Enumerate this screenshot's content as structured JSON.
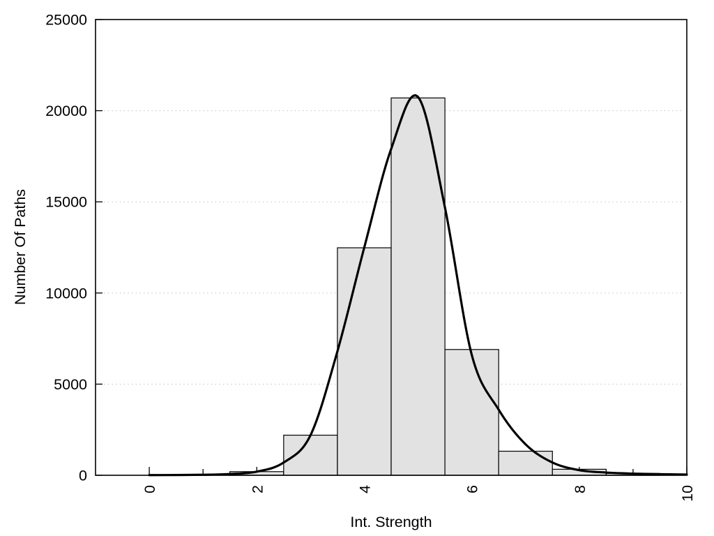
{
  "chart_data": {
    "type": "bar",
    "subtype": "histogram_with_density_curve",
    "title": "",
    "xlabel": "Int. Strength",
    "ylabel": "Number Of Paths",
    "xlim": [
      -1,
      10
    ],
    "ylim": [
      0,
      25000
    ],
    "x_major_ticks": [
      0,
      2,
      4,
      6,
      8,
      10
    ],
    "x_tick_labels": [
      "0",
      "2",
      "4",
      "6",
      "8",
      "10"
    ],
    "x_minor_ticks": [
      1,
      3,
      5,
      7,
      9
    ],
    "x_tick_labels_rotated": true,
    "y_ticks": [
      0,
      5000,
      10000,
      15000,
      20000,
      25000
    ],
    "y_tick_labels": [
      "0",
      "5000",
      "10000",
      "15000",
      "20000",
      "25000"
    ],
    "grid": {
      "horizontal": true,
      "vertical": false,
      "style": "dotted",
      "at_y": [
        5000,
        10000,
        15000,
        20000
      ]
    },
    "legend": null,
    "histogram": {
      "bin_width": 1,
      "bin_centers": [
        2,
        3,
        4,
        5,
        6,
        7,
        8,
        9
      ],
      "counts": [
        200,
        2200,
        12480,
        20700,
        6900,
        1320,
        330,
        100
      ]
    },
    "density_curve": {
      "x": [
        0,
        0.5,
        1,
        1.5,
        2,
        2.5,
        3,
        3.5,
        4,
        4.5,
        5,
        5.5,
        6,
        6.5,
        7,
        7.5,
        8,
        8.5,
        9,
        9.5,
        10
      ],
      "y": [
        10,
        15,
        30,
        70,
        200,
        700,
        2200,
        6800,
        12500,
        17900,
        20750,
        14700,
        6600,
        3600,
        1700,
        700,
        280,
        150,
        90,
        60,
        40
      ]
    },
    "colors": {
      "bar_fill": "#e2e2e2",
      "bar_stroke": "#000000",
      "curve": "#000000",
      "grid": "#c0c0c0",
      "axis": "#000000",
      "background": "#ffffff",
      "text": "#000000"
    }
  }
}
